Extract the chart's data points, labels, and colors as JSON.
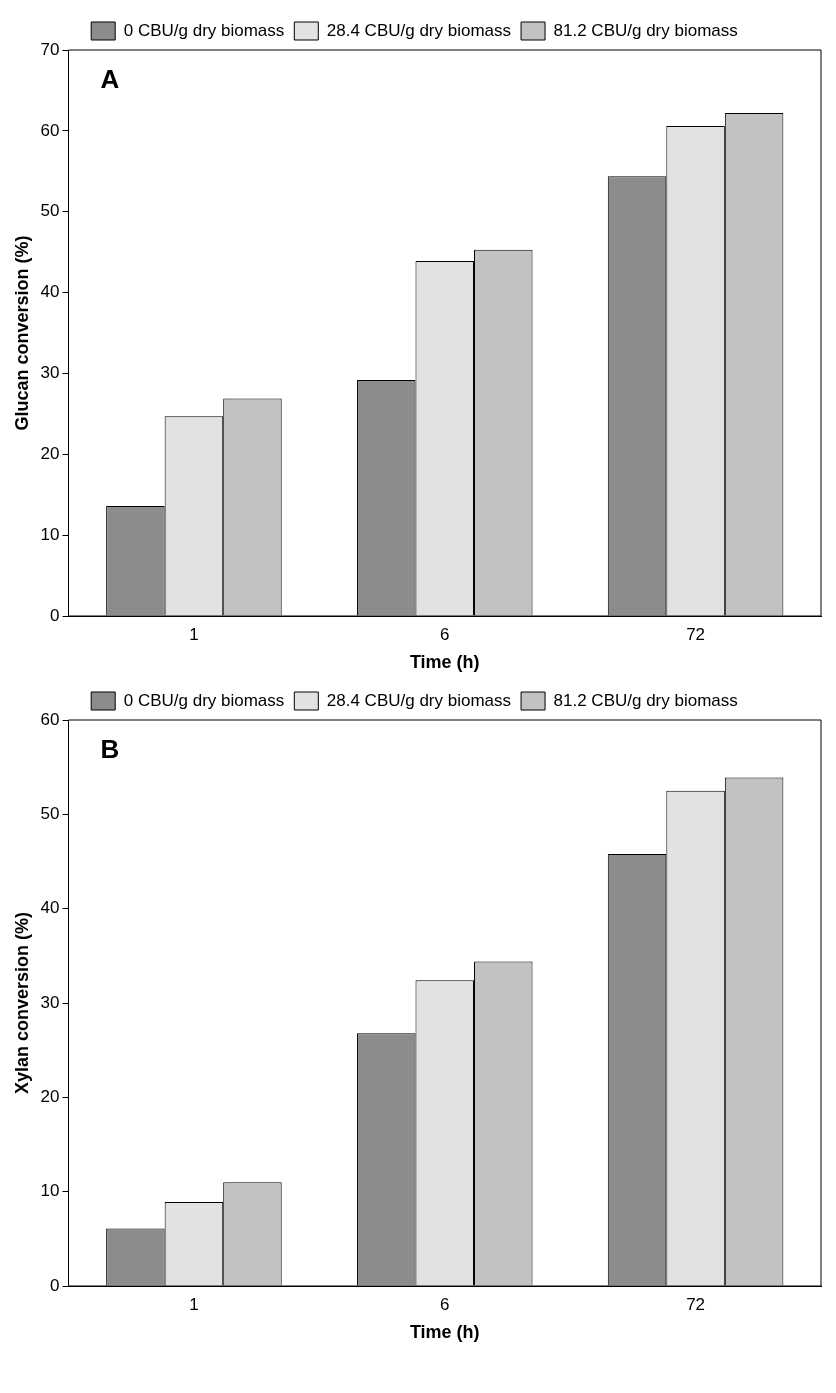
{
  "chart_data": [
    {
      "type": "bar",
      "annotations": [
        "A"
      ],
      "xlabel": "Time (h)",
      "ylabel": "Glucan conversion (%)",
      "categories": [
        "1",
        "6",
        "72"
      ],
      "legend": "top",
      "ylim": [
        0,
        70
      ],
      "yticks": [
        0,
        10,
        20,
        30,
        40,
        50,
        60,
        70
      ],
      "series": [
        {
          "name": "0 CBU/g dry biomass",
          "color": "#8c8c8c",
          "values": [
            13.6,
            29.2,
            54.4
          ]
        },
        {
          "name": "28.4 CBU/g dry biomass",
          "color": "#e2e2e2",
          "values": [
            24.7,
            43.9,
            60.6
          ]
        },
        {
          "name": "81.2 CBU/g dry biomass",
          "color": "#c2c2c2",
          "values": [
            26.9,
            45.3,
            62.2
          ]
        }
      ]
    },
    {
      "type": "bar",
      "annotations": [
        "B"
      ],
      "xlabel": "Time (h)",
      "ylabel": "Xylan conversion (%)",
      "categories": [
        "1",
        "6",
        "72"
      ],
      "legend": "top",
      "ylim": [
        0,
        60
      ],
      "yticks": [
        0,
        10,
        20,
        30,
        40,
        50,
        60
      ],
      "series": [
        {
          "name": "0 CBU/g dry biomass",
          "color": "#8c8c8c",
          "values": [
            6.1,
            26.8,
            45.8
          ]
        },
        {
          "name": "28.4 CBU/g dry biomass",
          "color": "#e2e2e2",
          "values": [
            8.9,
            32.4,
            52.5
          ]
        },
        {
          "name": "81.2 CBU/g dry biomass",
          "color": "#c2c2c2",
          "values": [
            11.0,
            34.4,
            53.9
          ]
        }
      ]
    }
  ]
}
